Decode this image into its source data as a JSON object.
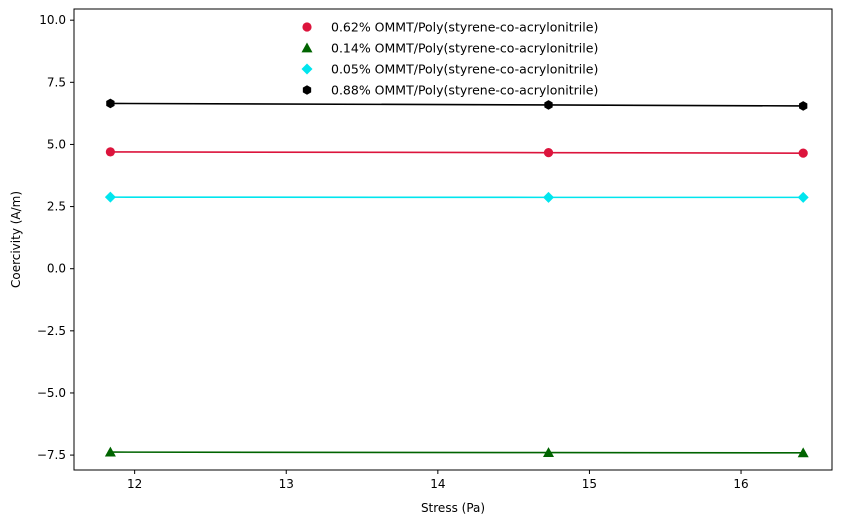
{
  "chart_data": {
    "type": "line",
    "title": "",
    "xlabel": "Stress (Pa)",
    "ylabel": "Coercivity (A/m)",
    "xlim": [
      11.6,
      16.6
    ],
    "ylim": [
      -8.1,
      10.45
    ],
    "x_ticks": [
      12,
      13,
      14,
      15,
      16
    ],
    "y_ticks": [
      -7.5,
      -5.0,
      -2.5,
      0.0,
      2.5,
      5.0,
      7.5,
      10.0
    ],
    "x_tick_labels": [
      "12",
      "13",
      "14",
      "15",
      "16"
    ],
    "y_tick_labels": [
      "−7.5",
      "−5.0",
      "−2.5",
      "0.0",
      "2.5",
      "5.0",
      "7.5",
      "10.0"
    ],
    "grid": false,
    "legend_position": "top-center",
    "series": [
      {
        "name": "0.62% OMMT/Poly(styrene-co-acrylonitrile)",
        "color": "#dc143c",
        "marker": "circle",
        "x": [
          11.84,
          14.73,
          16.41
        ],
        "y": [
          4.7,
          4.67,
          4.65
        ]
      },
      {
        "name": "0.14% OMMT/Poly(styrene-co-acrylonitrile)",
        "color": "#006400",
        "marker": "triangle",
        "x": [
          11.84,
          14.73,
          16.41
        ],
        "y": [
          -7.38,
          -7.4,
          -7.41
        ]
      },
      {
        "name": "0.05% OMMT/Poly(styrene-co-acrylonitrile)",
        "color": "#00e5ee",
        "marker": "diamond",
        "x": [
          11.84,
          14.73,
          16.41
        ],
        "y": [
          2.88,
          2.87,
          2.87
        ]
      },
      {
        "name": "0.88% OMMT/Poly(styrene-co-acrylonitrile)",
        "color": "#000000",
        "marker": "hexagon",
        "x": [
          11.84,
          14.73,
          16.41
        ],
        "y": [
          6.65,
          6.59,
          6.55
        ]
      }
    ]
  }
}
